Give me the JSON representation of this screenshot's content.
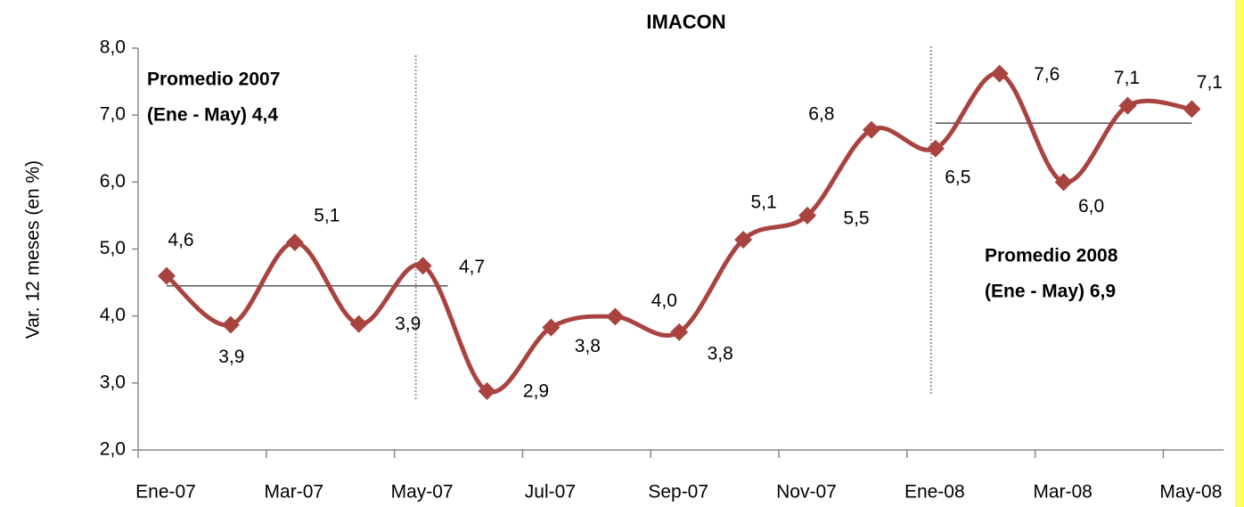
{
  "chart_data": {
    "type": "line",
    "title": "IMACON",
    "y_axis_label": "Var. 12 meses  (en %)",
    "categories": [
      "Ene-07",
      null,
      "Mar-07",
      null,
      "May-07",
      null,
      "Jul-07",
      null,
      "Sep-07",
      null,
      "Nov-07",
      null,
      "Ene-08",
      null,
      "Mar-08",
      null,
      "May-08"
    ],
    "series": [
      {
        "name": "IMACON",
        "color": "#a94340",
        "values": [
          4.6,
          3.87,
          5.1,
          3.88,
          4.75,
          2.88,
          3.83,
          3.99,
          3.76,
          5.14,
          5.5,
          6.78,
          6.5,
          7.62,
          6.0,
          7.14,
          7.09
        ],
        "value_labels": [
          "4,6",
          "3,9",
          "5,1",
          "3,9",
          "4,7",
          "2,9",
          "3,8",
          "4,0",
          "3,8",
          "5,1",
          "5,5",
          "6,8",
          "6,5",
          "7,6",
          "6,0",
          "7,1",
          "7,1"
        ]
      }
    ],
    "ylim": [
      2,
      8
    ],
    "yticks": [
      {
        "value": 2,
        "label": "2,0"
      },
      {
        "value": 3,
        "label": "3,0"
      },
      {
        "value": 4,
        "label": "4,0"
      },
      {
        "value": 5,
        "label": "5,0"
      },
      {
        "value": 6,
        "label": "6,0"
      },
      {
        "value": 7,
        "label": "7,0"
      },
      {
        "value": 8,
        "label": "8,0"
      }
    ],
    "grid": false,
    "averages": [
      {
        "text": [
          "Promedio 2007",
          "(Ene - May) 4,4"
        ],
        "value": 4.45,
        "start": "Ene-07",
        "end": "May-07"
      },
      {
        "text": [
          "Promedio 2008",
          "(Ene - May) 6,9"
        ],
        "value": 6.88,
        "start": "Ene-08",
        "end": "May-08"
      }
    ]
  }
}
